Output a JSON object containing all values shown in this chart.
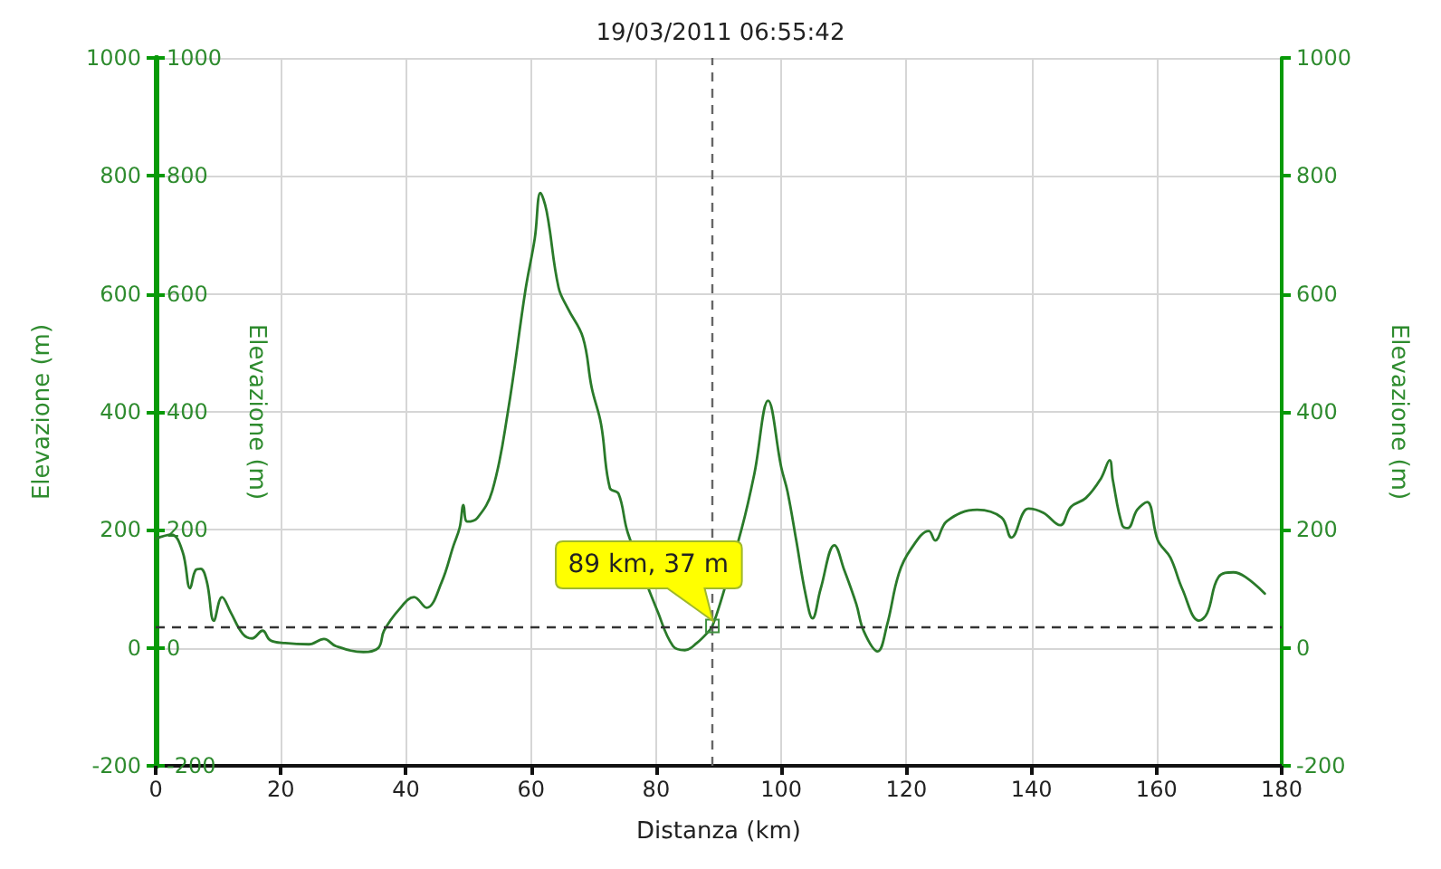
{
  "chart_data": {
    "type": "line",
    "title": "19/03/2011 06:55:42",
    "xlabel": "Distanza (km)",
    "ylabel": "Elevazione (m)",
    "y2label": "Elevazione (m)",
    "y3label": "Elevazione (m)",
    "x": [
      0,
      2.5,
      4.3,
      5.5,
      6.4,
      7.2,
      8.2,
      9.3,
      10.6,
      12,
      13.9,
      15.4,
      17.1,
      18.3,
      20.7,
      24.5,
      26.9,
      28.8,
      33.2,
      35.6,
      36.5,
      38.9,
      41.3,
      43.3,
      45.7,
      47.6,
      48.6,
      49.2,
      49.8,
      51.4,
      53.8,
      56.3,
      59.1,
      60.6,
      61.5,
      62.5,
      64.4,
      65.9,
      68.3,
      69.7,
      71.2,
      72.6,
      74,
      75.5,
      80.3,
      82.7,
      84.6,
      86.5,
      88.5,
      89,
      90.2,
      93.7,
      95.7,
      97.9,
      100,
      101,
      102.4,
      103.9,
      105,
      106.3,
      108.5,
      110.1,
      112,
      113.2,
      115.4,
      116.9,
      118.8,
      120.7,
      123.6,
      124.6,
      126.5,
      131.3,
      135.2,
      136.8,
      139.5,
      141.9,
      144.6,
      146.3,
      148.7,
      151.1,
      152.5,
      153,
      154.5,
      155.4,
      156.9,
      158.5,
      160.2,
      162.2,
      164.1,
      166.8,
      168.1,
      169.9,
      172.3,
      174.2,
      177.3
    ],
    "values": [
      185,
      192,
      163,
      101,
      132,
      134,
      111,
      46,
      86,
      60,
      24,
      16,
      29,
      13,
      8,
      6,
      15,
      3,
      -7,
      0,
      29,
      65,
      86,
      68,
      111,
      173,
      204,
      242,
      214,
      220,
      266,
      400,
      606,
      694,
      771,
      740,
      611,
      575,
      526,
      441,
      379,
      271,
      261,
      194,
      60,
      3,
      -4,
      8,
      29,
      37,
      74,
      203,
      295,
      419,
      306,
      265,
      182,
      90,
      50,
      100,
      174,
      131,
      74,
      28,
      -6,
      38,
      126,
      167,
      198,
      182,
      215,
      234,
      221,
      187,
      236,
      229,
      208,
      239,
      254,
      287,
      318,
      285,
      208,
      203,
      234,
      247,
      182,
      153,
      100,
      46,
      59,
      120,
      128,
      120,
      92
    ],
    "color": "#2a7a2a",
    "marker": "none",
    "line_style": "solid",
    "xlim": [
      0,
      180
    ],
    "xticks": [
      0,
      20,
      40,
      60,
      80,
      100,
      120,
      140,
      160,
      180
    ],
    "ylim": [
      -200,
      1000
    ],
    "yticks": [
      -200,
      0,
      200,
      400,
      600,
      800,
      1000
    ],
    "y2lim": [
      -200,
      1000
    ],
    "y2ticks": [
      -200,
      0,
      200,
      400,
      600,
      800,
      1000
    ],
    "y3lim": [
      -200,
      1000
    ],
    "y3ticks": [
      -200,
      0,
      200,
      400,
      600,
      800,
      1000
    ],
    "grid": true,
    "ref_lines": [
      {
        "axis": "x",
        "value": 89,
        "color": "#666666",
        "line_style": "dashed"
      },
      {
        "axis": "y",
        "value": 37,
        "color": "#333333",
        "line_style": "dashed"
      }
    ],
    "annotations": [
      {
        "text": "89 km, 37 m",
        "x": 89,
        "y": 37
      }
    ]
  }
}
